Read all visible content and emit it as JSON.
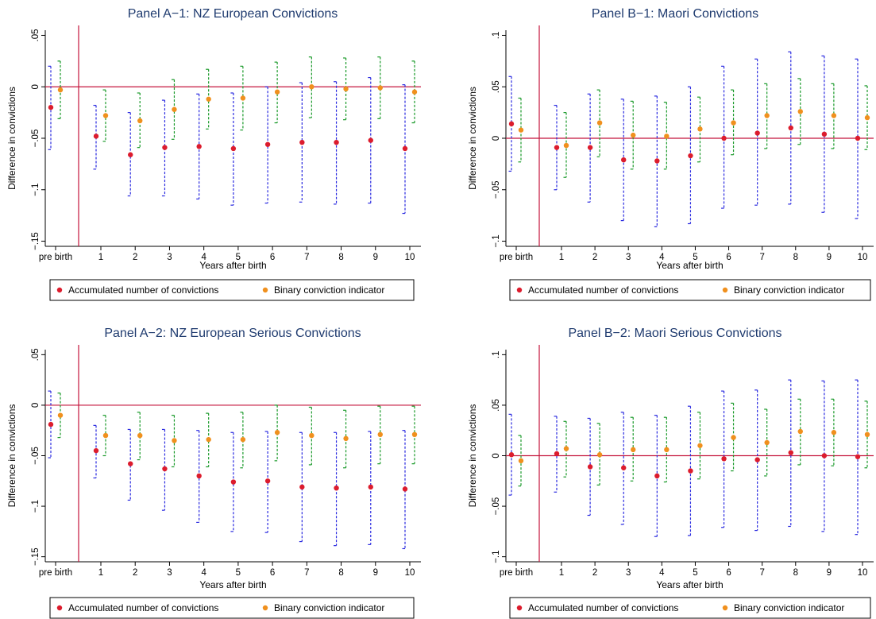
{
  "colors": {
    "accumulated": "#dc1c2d",
    "binary": "#f0901e",
    "ci_accumulated": "#2a2ae0",
    "ci_binary": "#1a9a2a",
    "refline": "#c4143c",
    "title": "#1f3b6f"
  },
  "legend": {
    "accumulated_label": "Accumulated number of convictions",
    "binary_label": "Binary conviction indicator",
    "placement": "bottom"
  },
  "chart_data": [
    {
      "type": "scatter",
      "title": "Panel A−1: NZ European Convictions",
      "xlabel": "Years after birth",
      "ylabel": "Difference in convictions",
      "categories": [
        "pre birth",
        "1",
        "2",
        "3",
        "4",
        "5",
        "6",
        "7",
        "8",
        "9",
        "10"
      ],
      "ylim": [
        -0.155,
        0.055
      ],
      "yticks": [
        0.05,
        0,
        -0.05,
        -0.1,
        -0.15
      ],
      "ytick_labels": [
        ".05",
        "0",
        "−.05",
        "−.1",
        "−.15"
      ],
      "series": [
        {
          "name": "Accumulated number of convictions",
          "values": [
            -0.02,
            -0.048,
            -0.066,
            -0.059,
            -0.058,
            -0.06,
            -0.056,
            -0.054,
            -0.054,
            -0.052,
            -0.06
          ],
          "ci_low": [
            -0.061,
            -0.08,
            -0.106,
            -0.106,
            -0.109,
            -0.115,
            -0.113,
            -0.112,
            -0.114,
            -0.113,
            -0.123
          ],
          "ci_high": [
            0.02,
            -0.018,
            -0.025,
            -0.013,
            -0.007,
            -0.006,
            0.0,
            0.004,
            0.005,
            0.009,
            0.002
          ]
        },
        {
          "name": "Binary conviction indicator",
          "values": [
            -0.003,
            -0.028,
            -0.033,
            -0.022,
            -0.012,
            -0.011,
            -0.005,
            0.0,
            -0.002,
            -0.001,
            -0.005
          ],
          "ci_low": [
            -0.031,
            -0.053,
            -0.059,
            -0.051,
            -0.041,
            -0.042,
            -0.035,
            -0.03,
            -0.032,
            -0.031,
            -0.035
          ],
          "ci_high": [
            0.025,
            -0.003,
            -0.006,
            0.007,
            0.017,
            0.02,
            0.024,
            0.029,
            0.028,
            0.029,
            0.025
          ]
        }
      ]
    },
    {
      "type": "scatter",
      "title": "Panel B−1: Maori Convictions",
      "xlabel": "Years after birth",
      "ylabel": "Difference in convictions",
      "categories": [
        "pre birth",
        "1",
        "2",
        "3",
        "4",
        "5",
        "6",
        "7",
        "8",
        "9",
        "10"
      ],
      "ylim": [
        -0.105,
        0.105
      ],
      "yticks": [
        0.1,
        0.05,
        0,
        -0.05,
        -0.1
      ],
      "ytick_labels": [
        ".1",
        ".05",
        "0",
        "−.05",
        "−.1"
      ],
      "series": [
        {
          "name": "Accumulated number of convictions",
          "values": [
            0.014,
            -0.009,
            -0.009,
            -0.021,
            -0.022,
            -0.017,
            0.0,
            0.005,
            0.01,
            0.004,
            0.0
          ],
          "ci_low": [
            -0.032,
            -0.05,
            -0.062,
            -0.08,
            -0.086,
            -0.083,
            -0.068,
            -0.065,
            -0.064,
            -0.072,
            -0.078
          ],
          "ci_high": [
            0.06,
            0.032,
            0.043,
            0.038,
            0.041,
            0.05,
            0.07,
            0.077,
            0.084,
            0.08,
            0.077
          ]
        },
        {
          "name": "Binary conviction indicator",
          "values": [
            0.008,
            -0.007,
            0.015,
            0.003,
            0.002,
            0.009,
            0.015,
            0.022,
            0.026,
            0.022,
            0.02
          ],
          "ci_low": [
            -0.023,
            -0.038,
            -0.018,
            -0.03,
            -0.03,
            -0.023,
            -0.016,
            -0.01,
            -0.006,
            -0.01,
            -0.011
          ],
          "ci_high": [
            0.039,
            0.025,
            0.047,
            0.036,
            0.035,
            0.04,
            0.047,
            0.053,
            0.058,
            0.053,
            0.051
          ]
        }
      ]
    },
    {
      "type": "scatter",
      "title": "Panel A−2: NZ European Serious Convictions",
      "xlabel": "Years after birth",
      "ylabel": "Difference in convictions",
      "categories": [
        "pre birth",
        "1",
        "2",
        "3",
        "4",
        "5",
        "6",
        "7",
        "8",
        "9",
        "10"
      ],
      "ylim": [
        -0.155,
        0.055
      ],
      "yticks": [
        0.05,
        0,
        -0.05,
        -0.1,
        -0.15
      ],
      "ytick_labels": [
        ".05",
        "0",
        "−.05",
        "−.1",
        "−.15"
      ],
      "series": [
        {
          "name": "Accumulated number of convictions",
          "values": [
            -0.019,
            -0.045,
            -0.058,
            -0.063,
            -0.07,
            -0.076,
            -0.075,
            -0.081,
            -0.082,
            -0.081,
            -0.083
          ],
          "ci_low": [
            -0.052,
            -0.072,
            -0.094,
            -0.104,
            -0.116,
            -0.125,
            -0.126,
            -0.135,
            -0.139,
            -0.138,
            -0.142
          ],
          "ci_high": [
            0.014,
            -0.02,
            -0.024,
            -0.024,
            -0.025,
            -0.027,
            -0.026,
            -0.027,
            -0.027,
            -0.026,
            -0.025
          ]
        },
        {
          "name": "Binary conviction indicator",
          "values": [
            -0.01,
            -0.03,
            -0.03,
            -0.035,
            -0.034,
            -0.034,
            -0.027,
            -0.03,
            -0.033,
            -0.029,
            -0.029
          ],
          "ci_low": [
            -0.032,
            -0.05,
            -0.054,
            -0.061,
            -0.061,
            -0.062,
            -0.055,
            -0.059,
            -0.062,
            -0.058,
            -0.058
          ],
          "ci_high": [
            0.012,
            -0.01,
            -0.007,
            -0.01,
            -0.008,
            -0.007,
            0.0,
            -0.002,
            -0.005,
            -0.001,
            -0.001
          ]
        }
      ]
    },
    {
      "type": "scatter",
      "title": "Panel B−2: Maori Serious Convictions",
      "xlabel": "Years after birth",
      "ylabel": "Difference in convictions",
      "categories": [
        "pre birth",
        "1",
        "2",
        "3",
        "4",
        "5",
        "6",
        "7",
        "8",
        "9",
        "10"
      ],
      "ylim": [
        -0.105,
        0.105
      ],
      "yticks": [
        0.1,
        0.05,
        0,
        -0.05,
        -0.1
      ],
      "ytick_labels": [
        ".1",
        ".05",
        "0",
        "−.05",
        "−.1"
      ],
      "series": [
        {
          "name": "Accumulated number of convictions",
          "values": [
            0.001,
            0.002,
            -0.011,
            -0.012,
            -0.02,
            -0.015,
            -0.003,
            -0.004,
            0.003,
            0.0,
            -0.001
          ],
          "ci_low": [
            -0.039,
            -0.036,
            -0.059,
            -0.068,
            -0.08,
            -0.079,
            -0.071,
            -0.074,
            -0.07,
            -0.075,
            -0.078
          ],
          "ci_high": [
            0.041,
            0.039,
            0.037,
            0.043,
            0.04,
            0.049,
            0.064,
            0.065,
            0.075,
            0.074,
            0.075
          ]
        },
        {
          "name": "Binary conviction indicator",
          "values": [
            -0.005,
            0.007,
            0.001,
            0.006,
            0.006,
            0.01,
            0.018,
            0.013,
            0.024,
            0.023,
            0.021
          ],
          "ci_low": [
            -0.03,
            -0.021,
            -0.029,
            -0.025,
            -0.026,
            -0.023,
            -0.015,
            -0.02,
            -0.009,
            -0.01,
            -0.012
          ],
          "ci_high": [
            0.02,
            0.034,
            0.032,
            0.038,
            0.038,
            0.043,
            0.052,
            0.046,
            0.056,
            0.056,
            0.054
          ]
        }
      ]
    }
  ]
}
